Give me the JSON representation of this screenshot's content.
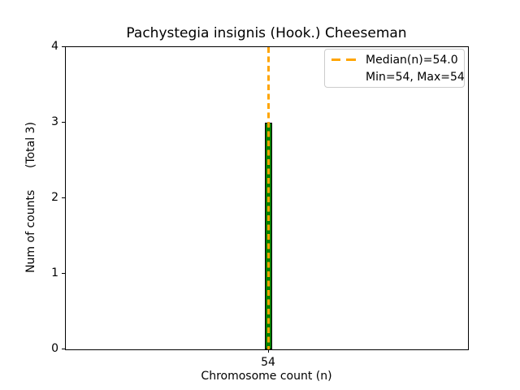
{
  "figure": {
    "title": "Pachystegia insignis (Hook.) Cheeseman"
  },
  "chart_data": {
    "type": "bar",
    "title": "Pachystegia insignis (Hook.) Cheeseman",
    "xlabel": "Chromosome count (n)",
    "ylabel": "Num of counts      (Total 3)",
    "categories": [
      "54"
    ],
    "values": [
      3
    ],
    "total_counts": 3,
    "median_n": "54.0",
    "min_n": 54,
    "max_n": 54,
    "ylim": [
      0,
      4
    ],
    "y_ticks": [
      "0",
      "1",
      "2",
      "3",
      "4"
    ],
    "x_ticks": [
      "54"
    ],
    "grid": false,
    "legend": {
      "position": "upper right",
      "entries": [
        "Median(n)=54.0",
        "Min=54, Max=54"
      ]
    },
    "colors": {
      "bar_fill": "#008000",
      "bar_edge": "#000000",
      "median_line": "#FFA500",
      "legend_border": "#cccccc",
      "axes": "#000000",
      "background": "#ffffff"
    }
  }
}
